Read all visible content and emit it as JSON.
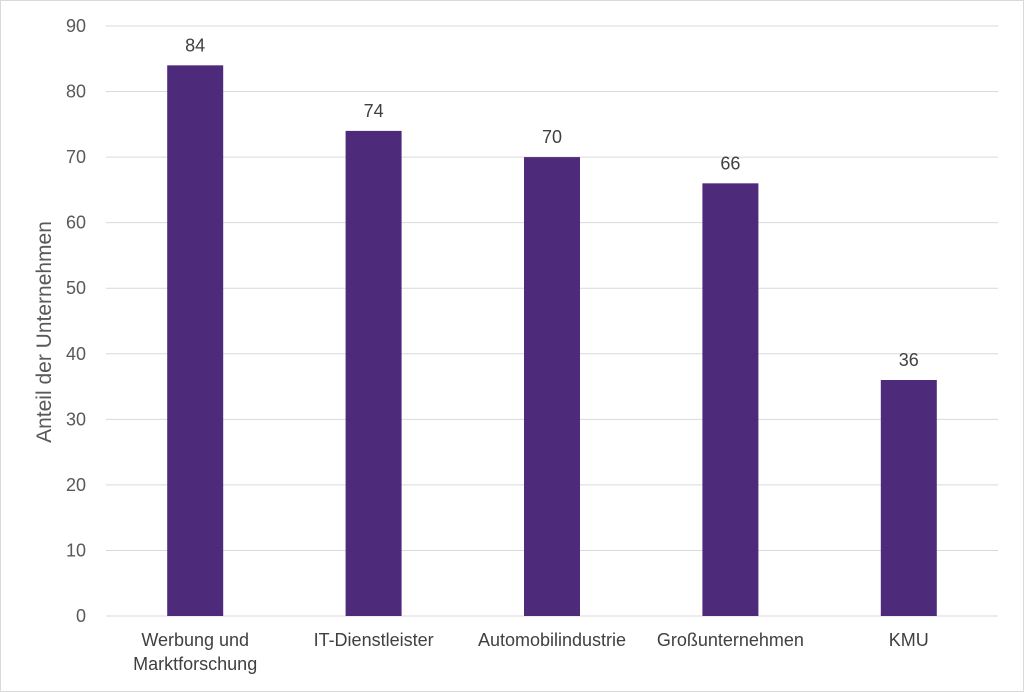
{
  "chart_data": {
    "type": "bar",
    "categories": [
      [
        "Werbung und",
        "Marktforschung"
      ],
      [
        "IT-Dienstleister"
      ],
      [
        "Automobilindustrie"
      ],
      [
        "Großunternehmen"
      ],
      [
        "KMU"
      ]
    ],
    "values": [
      84,
      74,
      70,
      66,
      36
    ],
    "ylabel": "Anteil der Unternehmen",
    "xlabel": "",
    "title": "",
    "ylim": [
      0,
      90
    ],
    "yticks": [
      0,
      10,
      20,
      30,
      40,
      50,
      60,
      70,
      80,
      90
    ],
    "grid": true,
    "bar_color": "#4e2a7b",
    "gridline_color": "#d9d9d9",
    "data_labels": true
  }
}
